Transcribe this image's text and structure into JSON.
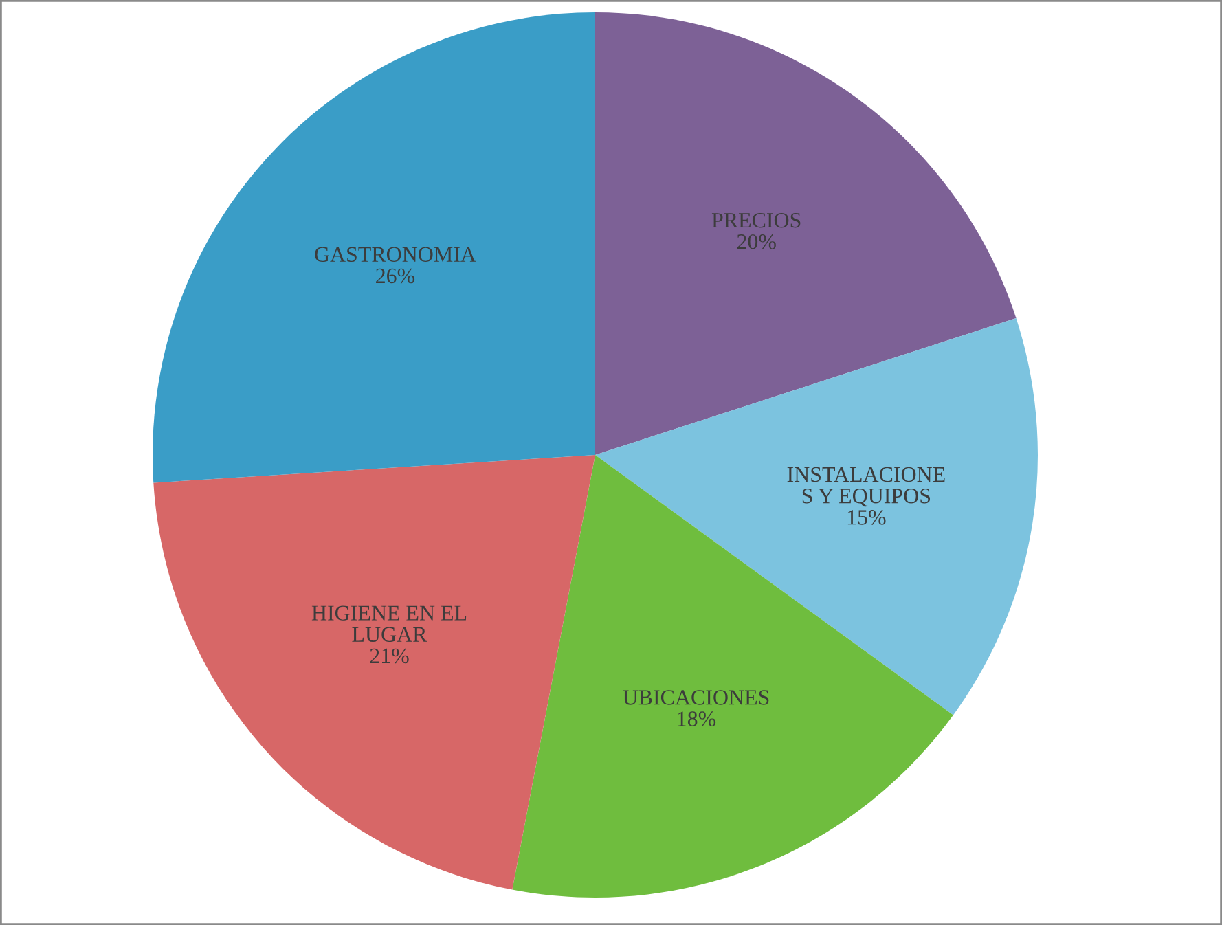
{
  "chart_data": {
    "type": "pie",
    "categories": [
      "PRECIOS",
      "INSTALACIONE\nS Y EQUIPOS",
      "UBICACIONES",
      "HIGIENE EN EL\nLUGAR",
      "GASTRONOMIA"
    ],
    "values": [
      20,
      15,
      18,
      21,
      26
    ],
    "value_labels": [
      "20%",
      "15%",
      "18%",
      "21%",
      "26%"
    ],
    "colors": [
      "#7d6196",
      "#7cc3df",
      "#6fbd3e",
      "#d76767",
      "#3a9dc7"
    ],
    "legend": false
  }
}
